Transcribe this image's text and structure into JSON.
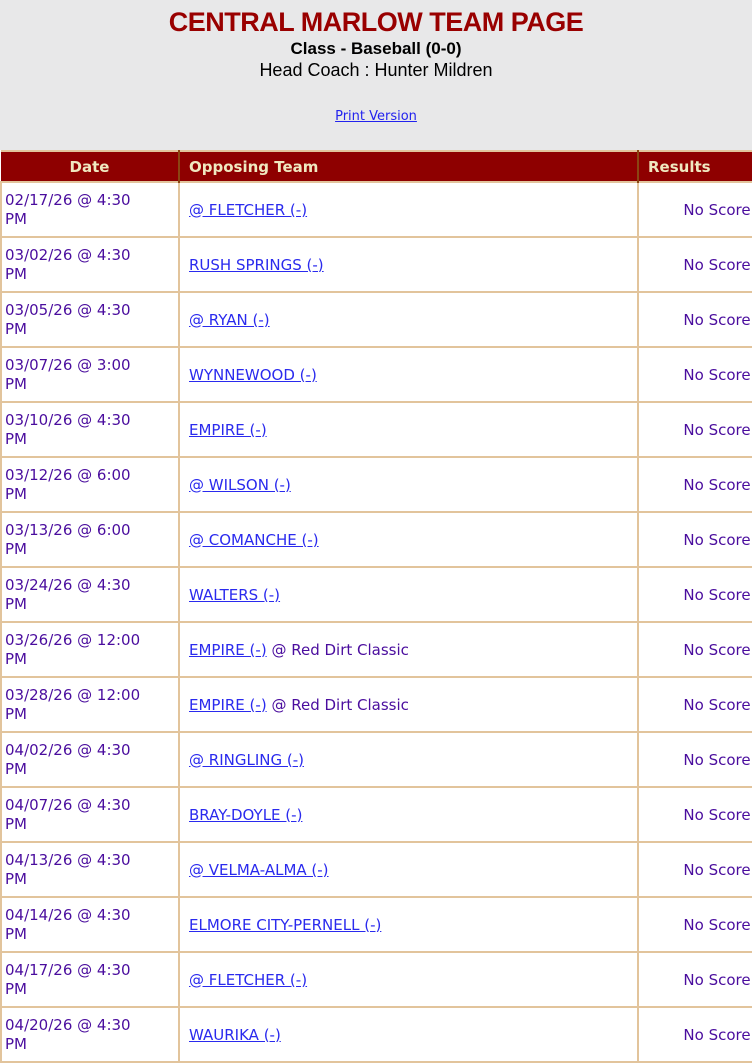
{
  "header": {
    "title": "CENTRAL MARLOW TEAM PAGE",
    "subtitle": "Class - Baseball (0-0)",
    "coach": "Head Coach : Hunter Mildren",
    "print_link": "Print Version"
  },
  "colors": {
    "page_background": "#E8E8E9",
    "title_red": "#990000",
    "table_header_bg": "#8E0000",
    "table_header_text": "#F0E8C0",
    "table_border_tan": "#E2C49C",
    "date_result_purple": "#4A0D9E",
    "link_blue": "#2A2AEE"
  },
  "schedule": {
    "columns": [
      "Date",
      "Opposing Team",
      "Results"
    ],
    "rows": [
      {
        "date": "02/17/26 @ 4:30 PM",
        "opponent": "@ FLETCHER (-)",
        "note": "",
        "result": "No Score"
      },
      {
        "date": "03/02/26 @ 4:30 PM",
        "opponent": "RUSH SPRINGS (-)",
        "note": "",
        "result": "No Score"
      },
      {
        "date": "03/05/26 @ 4:30 PM",
        "opponent": "@ RYAN (-)",
        "note": "",
        "result": "No Score"
      },
      {
        "date": "03/07/26 @ 3:00 PM",
        "opponent": "WYNNEWOOD (-)",
        "note": "",
        "result": "No Score"
      },
      {
        "date": "03/10/26 @ 4:30 PM",
        "opponent": "EMPIRE (-)",
        "note": "",
        "result": "No Score"
      },
      {
        "date": "03/12/26 @ 6:00 PM",
        "opponent": "@ WILSON (-)",
        "note": "",
        "result": "No Score"
      },
      {
        "date": "03/13/26 @ 6:00 PM",
        "opponent": "@ COMANCHE (-)",
        "note": "",
        "result": "No Score"
      },
      {
        "date": "03/24/26 @ 4:30 PM",
        "opponent": "WALTERS (-)",
        "note": "",
        "result": "No Score"
      },
      {
        "date": "03/26/26 @ 12:00 PM",
        "opponent": "EMPIRE (-)",
        "note": "@ Red Dirt Classic",
        "result": "No Score"
      },
      {
        "date": "03/28/26 @ 12:00 PM",
        "opponent": "EMPIRE (-)",
        "note": "@ Red Dirt Classic",
        "result": "No Score"
      },
      {
        "date": "04/02/26 @ 4:30 PM",
        "opponent": "@ RINGLING (-)",
        "note": "",
        "result": "No Score"
      },
      {
        "date": "04/07/26 @ 4:30 PM",
        "opponent": "BRAY-DOYLE (-)",
        "note": "",
        "result": "No Score"
      },
      {
        "date": "04/13/26 @ 4:30 PM",
        "opponent": "@ VELMA-ALMA (-)",
        "note": "",
        "result": "No Score"
      },
      {
        "date": "04/14/26 @ 4:30 PM",
        "opponent": "ELMORE CITY-PERNELL (-)",
        "note": "",
        "result": "No Score"
      },
      {
        "date": "04/17/26 @ 4:30 PM",
        "opponent": "@ FLETCHER (-)",
        "note": "",
        "result": "No Score"
      },
      {
        "date": "04/20/26 @ 4:30 PM",
        "opponent": "WAURIKA (-)",
        "note": "",
        "result": "No Score"
      }
    ]
  }
}
